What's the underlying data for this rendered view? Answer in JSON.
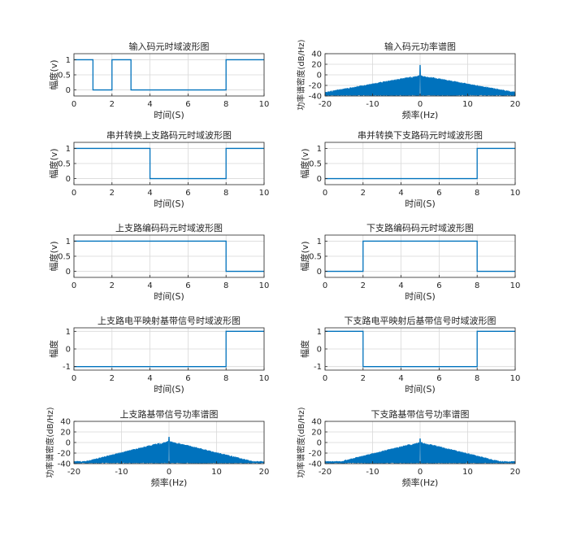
{
  "figure": {
    "colors": {
      "line": "#0072BD",
      "grid": "#d9d9d9",
      "axis": "#262626",
      "background": "#ffffff"
    }
  },
  "chart_data": [
    {
      "id": "input-time",
      "type": "line",
      "title": "输入码元时域波形图",
      "xlabel": "时间(S)",
      "ylabel": "幅度(v)",
      "xlim": [
        0,
        10
      ],
      "ylim": [
        -0.2,
        1.2
      ],
      "xticks": [
        0,
        2,
        4,
        6,
        8,
        10
      ],
      "yticks": [
        0,
        0.5,
        1
      ],
      "xticklabels": [
        "0",
        "2",
        "4",
        "6",
        "8",
        "10"
      ],
      "yticklabels": [
        "0",
        "0.5",
        "1"
      ],
      "grid": true,
      "series": [
        {
          "x": [
            0,
            1,
            1,
            2,
            2,
            3,
            3,
            8,
            8,
            10
          ],
          "y": [
            1,
            1,
            0,
            0,
            1,
            1,
            0,
            0,
            1,
            1
          ]
        }
      ]
    },
    {
      "id": "input-psd",
      "type": "line",
      "title": "输入码元功率谱图",
      "xlabel": "频率(Hz)",
      "ylabel": "功率谱密度(dB/Hz)",
      "xlim": [
        -20,
        20
      ],
      "ylim": [
        -40,
        40
      ],
      "xticks": [
        -20,
        -10,
        0,
        10,
        20
      ],
      "yticks": [
        -40,
        -20,
        0,
        20,
        40
      ],
      "xticklabels": [
        "-20",
        "-10",
        "0",
        "10",
        "20"
      ],
      "yticklabels": [
        "-40",
        "-20",
        "0",
        "20",
        "40"
      ],
      "grid": true,
      "spectrum": {
        "peak_db": 18,
        "main_lobe_db": 0,
        "floor_db": -38,
        "decay_db_per_hz": 1.6,
        "ripple_spacing_hz": 1
      }
    },
    {
      "id": "upper-split-time",
      "type": "line",
      "title": "串并转换上支路码元时域波形图",
      "xlabel": "时间(S)",
      "ylabel": "幅度(v)",
      "xlim": [
        0,
        10
      ],
      "ylim": [
        -0.2,
        1.2
      ],
      "xticks": [
        0,
        2,
        4,
        6,
        8,
        10
      ],
      "yticks": [
        0,
        0.5,
        1
      ],
      "xticklabels": [
        "0",
        "2",
        "4",
        "6",
        "8",
        "10"
      ],
      "yticklabels": [
        "0",
        "0.5",
        "1"
      ],
      "grid": true,
      "series": [
        {
          "x": [
            0,
            4,
            4,
            8,
            8,
            10
          ],
          "y": [
            1,
            1,
            0,
            0,
            1,
            1
          ]
        }
      ]
    },
    {
      "id": "lower-split-time",
      "type": "line",
      "title": "串并转换下支路码元时域波形图",
      "xlabel": "时间(S)",
      "ylabel": "幅度(v)",
      "xlim": [
        0,
        10
      ],
      "ylim": [
        -0.2,
        1.2
      ],
      "xticks": [
        0,
        2,
        4,
        6,
        8,
        10
      ],
      "yticks": [
        0,
        0.5,
        1
      ],
      "xticklabels": [
        "0",
        "2",
        "4",
        "6",
        "8",
        "10"
      ],
      "yticklabels": [
        "0",
        "0.5",
        "1"
      ],
      "grid": true,
      "series": [
        {
          "x": [
            0,
            8,
            8,
            10
          ],
          "y": [
            0,
            0,
            1,
            1
          ]
        }
      ]
    },
    {
      "id": "upper-coded-time",
      "type": "line",
      "title": "上支路编码码元时域波形图",
      "xlabel": "时间(S)",
      "ylabel": "幅度(v)",
      "xlim": [
        0,
        10
      ],
      "ylim": [
        -0.2,
        1.2
      ],
      "xticks": [
        0,
        2,
        4,
        6,
        8,
        10
      ],
      "yticks": [
        0,
        0.5,
        1
      ],
      "xticklabels": [
        "0",
        "2",
        "4",
        "6",
        "8",
        "10"
      ],
      "yticklabels": [
        "0",
        "0.5",
        "1"
      ],
      "grid": true,
      "series": [
        {
          "x": [
            0,
            8,
            8,
            10
          ],
          "y": [
            1,
            1,
            0,
            0
          ]
        }
      ]
    },
    {
      "id": "lower-coded-time",
      "type": "line",
      "title": "下支路编码码元时域波形图",
      "xlabel": "时间(S)",
      "ylabel": "幅度(v)",
      "xlim": [
        0,
        10
      ],
      "ylim": [
        -0.2,
        1.2
      ],
      "xticks": [
        0,
        2,
        4,
        6,
        8,
        10
      ],
      "yticks": [
        0,
        0.5,
        1
      ],
      "xticklabels": [
        "0",
        "2",
        "4",
        "6",
        "8",
        "10"
      ],
      "yticklabels": [
        "0",
        "0.5",
        "1"
      ],
      "grid": true,
      "series": [
        {
          "x": [
            0,
            2,
            2,
            8,
            8,
            10
          ],
          "y": [
            0,
            0,
            1,
            1,
            0,
            0
          ]
        }
      ]
    },
    {
      "id": "upper-mapped-time",
      "type": "line",
      "title": "上支路电平映射基带信号时域波形图",
      "xlabel": "时间(S)",
      "ylabel": "幅度",
      "xlim": [
        0,
        10
      ],
      "ylim": [
        -1.2,
        1.2
      ],
      "xticks": [
        0,
        2,
        4,
        6,
        8,
        10
      ],
      "yticks": [
        -1,
        0,
        1
      ],
      "xticklabels": [
        "0",
        "2",
        "4",
        "6",
        "8",
        "10"
      ],
      "yticklabels": [
        "-1",
        "0",
        "1"
      ],
      "grid": true,
      "series": [
        {
          "x": [
            0,
            8,
            8,
            10
          ],
          "y": [
            -1,
            -1,
            1,
            1
          ]
        }
      ]
    },
    {
      "id": "lower-mapped-time",
      "type": "line",
      "title": "下支路电平映射后基带信号时域波形图",
      "xlabel": "时间(S)",
      "ylabel": "幅度",
      "xlim": [
        0,
        10
      ],
      "ylim": [
        -1.2,
        1.2
      ],
      "xticks": [
        0,
        2,
        4,
        6,
        8,
        10
      ],
      "yticks": [
        -1,
        0,
        1
      ],
      "xticklabels": [
        "0",
        "2",
        "4",
        "6",
        "8",
        "10"
      ],
      "yticklabels": [
        "-1",
        "0",
        "1"
      ],
      "grid": true,
      "series": [
        {
          "x": [
            0,
            2,
            2,
            8,
            8,
            10
          ],
          "y": [
            1,
            1,
            -1,
            -1,
            1,
            1
          ]
        }
      ]
    },
    {
      "id": "upper-psd",
      "type": "line",
      "title": "上支路基带信号功率谱图",
      "xlabel": "频率(Hz)",
      "ylabel": "功率谱密度(dB/Hz)",
      "xlim": [
        -20,
        20
      ],
      "ylim": [
        -40,
        40
      ],
      "xticks": [
        -20,
        -10,
        0,
        10,
        20
      ],
      "yticks": [
        -40,
        -20,
        0,
        20,
        40
      ],
      "xticklabels": [
        "-20",
        "-10",
        "0",
        "10",
        "20"
      ],
      "yticklabels": [
        "-40",
        "-20",
        "0",
        "20",
        "40"
      ],
      "grid": true,
      "spectrum": {
        "peak_db": 10,
        "main_lobe_db": 4,
        "floor_db": -38,
        "decay_db_per_hz": 2.2,
        "ripple_spacing_hz": 0.4
      }
    },
    {
      "id": "lower-psd",
      "type": "line",
      "title": "下支路基带信号功率谱图",
      "xlabel": "频率(Hz)",
      "ylabel": "功率谱密度(dB/Hz)",
      "xlim": [
        -20,
        20
      ],
      "ylim": [
        -40,
        40
      ],
      "xticks": [
        -20,
        -10,
        0,
        10,
        20
      ],
      "yticks": [
        -40,
        -20,
        0,
        20,
        40
      ],
      "xticklabels": [
        "-20",
        "-10",
        "0",
        "10",
        "20"
      ],
      "yticklabels": [
        "-40",
        "-20",
        "0",
        "20",
        "40"
      ],
      "grid": true,
      "spectrum": {
        "peak_db": 7,
        "main_lobe_db": 2,
        "floor_db": -38,
        "decay_db_per_hz": 2.2,
        "ripple_spacing_hz": 0.4
      }
    }
  ]
}
